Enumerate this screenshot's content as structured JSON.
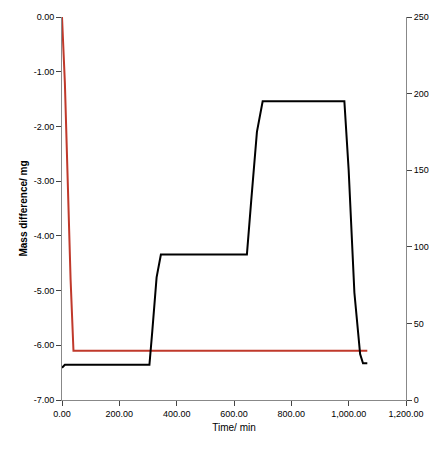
{
  "chart_data": {
    "type": "line",
    "x_label": "Time/ min",
    "y_label": "Mass difference/ mg",
    "xlim": [
      0,
      1200
    ],
    "xticks": [
      {
        "value": 0,
        "label": "0.00"
      },
      {
        "value": 200,
        "label": "200.00"
      },
      {
        "value": 400,
        "label": "400.00"
      },
      {
        "value": 600,
        "label": "600.00"
      },
      {
        "value": 800,
        "label": "800.00"
      },
      {
        "value": 1000,
        "label": "1,000.00"
      },
      {
        "value": 1200,
        "label": "1,200.00"
      }
    ],
    "ylim": [
      -7,
      0
    ],
    "yticks": [
      {
        "value": -7,
        "label": "-7.00"
      },
      {
        "value": -6,
        "label": "-6.00"
      },
      {
        "value": -5,
        "label": "-5.00"
      },
      {
        "value": -4,
        "label": "-4.00"
      },
      {
        "value": -3,
        "label": "-3.00"
      },
      {
        "value": -2,
        "label": "-2.00"
      },
      {
        "value": -1,
        "label": "-1.00"
      },
      {
        "value": 0,
        "label": "0.00"
      }
    ],
    "y2lim": [
      0,
      250
    ],
    "y2ticks": [
      0,
      50,
      100,
      150,
      200,
      250
    ],
    "grid": false,
    "series": [
      {
        "color": "#c0392b",
        "axis": "y",
        "x": [
          0,
          10,
          20,
          30,
          40,
          200,
          400,
          600,
          800,
          1000,
          1065
        ],
        "values": [
          0,
          -1.2,
          -3.0,
          -4.8,
          -6.1,
          -6.1,
          -6.1,
          -6.1,
          -6.1,
          -6.1,
          -6.1
        ]
      },
      {
        "color": "#000000",
        "axis": "y2",
        "x": [
          0,
          10,
          100,
          305,
          315,
          330,
          345,
          500,
          645,
          660,
          680,
          700,
          850,
          985,
          1000,
          1020,
          1040,
          1050,
          1065
        ],
        "values": [
          21,
          23,
          23,
          23,
          45,
          80,
          95,
          95,
          95,
          130,
          175,
          195,
          195,
          195,
          150,
          70,
          30,
          24,
          24
        ]
      }
    ]
  }
}
